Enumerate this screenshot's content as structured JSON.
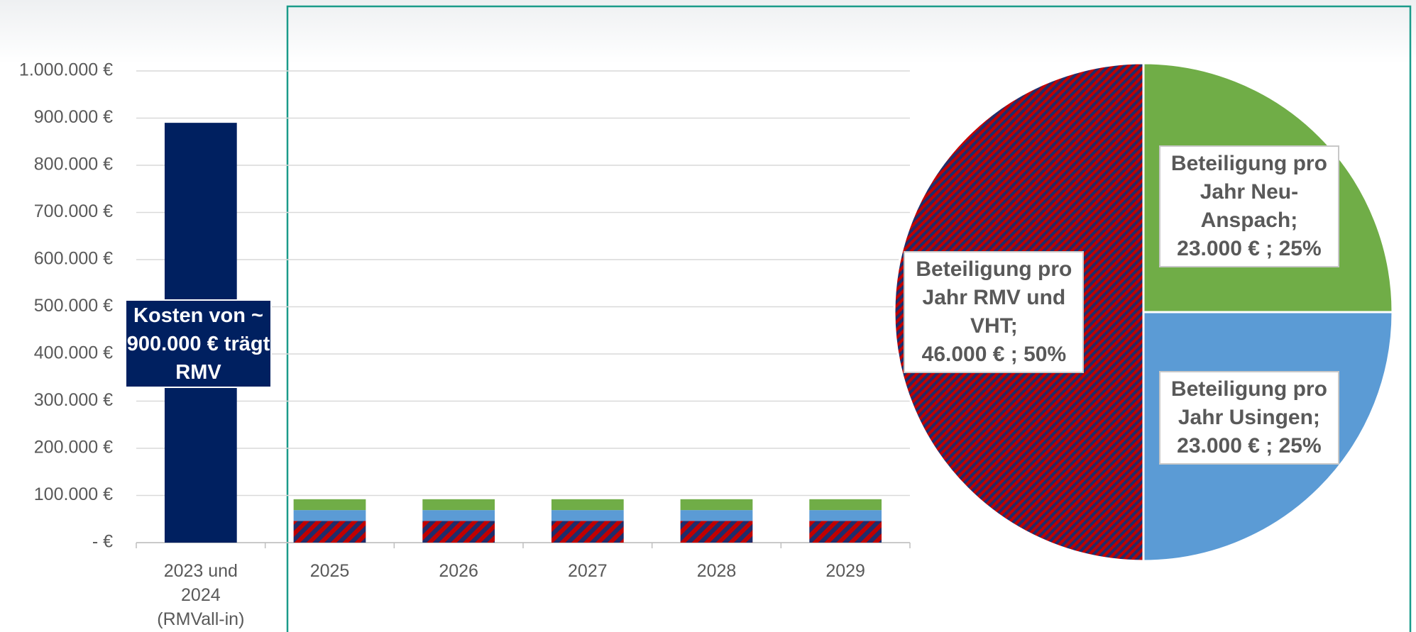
{
  "chart_data": [
    {
      "type": "bar",
      "stacked": true,
      "categories": [
        "2023 und 2024 (RMVall-in)",
        "2025",
        "2026",
        "2027",
        "2028",
        "2029"
      ],
      "series": [
        {
          "color": "#002060",
          "values": [
            890000,
            null,
            null,
            null,
            null,
            null
          ]
        },
        {
          "color": "#c00000",
          "hatch": "#1f2d6b",
          "values": [
            null,
            46000,
            46000,
            46000,
            46000,
            46000
          ]
        },
        {
          "color": "#5b9bd5",
          "values": [
            null,
            23000,
            23000,
            23000,
            23000,
            23000
          ]
        },
        {
          "color": "#70ad47",
          "values": [
            null,
            23000,
            23000,
            23000,
            23000,
            23000
          ]
        }
      ],
      "ylim": [
        0,
        1000000
      ],
      "yticks": [
        {
          "value": 0,
          "label": "- €"
        },
        {
          "value": 100000,
          "label": "100.000 €"
        },
        {
          "value": 200000,
          "label": "200.000 €"
        },
        {
          "value": 300000,
          "label": "300.000 €"
        },
        {
          "value": 400000,
          "label": "400.000 €"
        },
        {
          "value": 500000,
          "label": "500.000 €"
        },
        {
          "value": 600000,
          "label": "600.000 €"
        },
        {
          "value": 700000,
          "label": "700.000 €"
        },
        {
          "value": 800000,
          "label": "800.000 €"
        },
        {
          "value": 900000,
          "label": "900.000 €"
        },
        {
          "value": 1000000,
          "label": "1.000.000 €"
        }
      ],
      "grid": true,
      "annotation": "Kosten von ~ 900.000 € trägt RMV"
    },
    {
      "type": "pie",
      "categories": [
        "Beteiligung pro Jahr Neu-Anspach;",
        "Beteiligung pro Jahr Usingen;",
        "Beteiligung pro Jahr RMV und VHT;"
      ],
      "values": [
        23000,
        23000,
        46000
      ],
      "value_labels": [
        "23.000 € ; 25%",
        "23.000 € ; 25%",
        "46.000 € ; 50%"
      ],
      "colors": [
        "#70ad47",
        "#5b9bd5",
        "#c00000"
      ],
      "hatch": [
        null,
        null,
        "#1f2d6b"
      ]
    }
  ]
}
